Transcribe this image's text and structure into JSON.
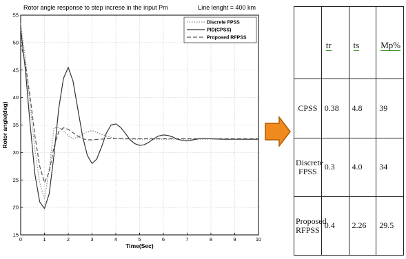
{
  "chart_data": {
    "type": "line",
    "title": "Rotor angle response to step increse in the input Pm",
    "annotation": "Line lenght = 400 km",
    "xlabel": "Time(Sec)",
    "ylabel": "Rotor angle(deg)",
    "xlim": [
      0,
      10
    ],
    "ylim": [
      15,
      55
    ],
    "x_ticks": [
      0,
      1,
      2,
      3,
      4,
      5,
      6,
      7,
      8,
      9,
      10
    ],
    "y_ticks": [
      15,
      20,
      25,
      30,
      35,
      40,
      45,
      50,
      55
    ],
    "x_tick_labels": [
      "0",
      "1",
      "2",
      "3",
      "4",
      "5",
      "6",
      "7",
      "8",
      "9",
      "10"
    ],
    "y_tick_labels": [
      "15",
      "20",
      "25",
      "30",
      "35",
      "40",
      "45",
      "50",
      "55"
    ],
    "grid": true,
    "legend_position": "top-right",
    "series": [
      {
        "name": "Discrete FPSS",
        "style": "dotted",
        "color": "#8a8a8a",
        "x": [
          0,
          0.2,
          0.4,
          0.6,
          0.8,
          1.0,
          1.2,
          1.4,
          1.6,
          1.8,
          2.0,
          2.2,
          2.4,
          2.6,
          2.8,
          3.0,
          3.3,
          3.6,
          4.0,
          4.5,
          5.0,
          6.0,
          7.0,
          8.0,
          9.0,
          10.0
        ],
        "y": [
          53.5,
          47.0,
          38.5,
          30.5,
          24.5,
          21.5,
          27.0,
          34.5,
          34.5,
          34.0,
          33.0,
          32.5,
          32.8,
          33.3,
          33.8,
          34.0,
          33.5,
          33.0,
          32.5,
          32.4,
          32.4,
          32.4,
          32.4,
          32.4,
          32.4,
          32.4
        ]
      },
      {
        "name": "PID(CPSS)",
        "style": "solid",
        "color": "#333333",
        "x": [
          0,
          0.2,
          0.4,
          0.6,
          0.8,
          1.0,
          1.2,
          1.4,
          1.6,
          1.8,
          2.0,
          2.2,
          2.4,
          2.6,
          2.8,
          3.0,
          3.2,
          3.4,
          3.6,
          3.8,
          4.0,
          4.2,
          4.4,
          4.6,
          4.8,
          5.0,
          5.2,
          5.4,
          5.6,
          5.8,
          6.0,
          6.2,
          6.4,
          6.6,
          6.8,
          7.0,
          7.5,
          8.0,
          8.5,
          9.0,
          10.0
        ],
        "y": [
          52.5,
          45.0,
          35.0,
          26.0,
          21.0,
          19.8,
          22.5,
          29.5,
          38.0,
          43.5,
          45.5,
          43.0,
          38.0,
          33.0,
          29.5,
          28.0,
          28.8,
          31.0,
          33.5,
          35.0,
          35.2,
          34.6,
          33.5,
          32.3,
          31.6,
          31.3,
          31.4,
          31.9,
          32.5,
          33.0,
          33.2,
          33.1,
          32.8,
          32.4,
          32.2,
          32.1,
          32.5,
          32.5,
          32.4,
          32.4,
          32.4
        ]
      },
      {
        "name": "Proposed RFPSS",
        "style": "dashed",
        "color": "#555555",
        "x": [
          0,
          0.2,
          0.4,
          0.6,
          0.8,
          1.0,
          1.2,
          1.4,
          1.6,
          1.8,
          2.0,
          2.2,
          2.4,
          2.6,
          2.8,
          3.0,
          3.3,
          3.6,
          4.0,
          5.0,
          6.0,
          7.0,
          8.0,
          9.0,
          10.0
        ],
        "y": [
          50.0,
          46.0,
          40.0,
          33.0,
          27.5,
          24.5,
          26.5,
          31.0,
          33.8,
          34.5,
          34.2,
          33.6,
          33.0,
          32.5,
          32.3,
          32.3,
          32.4,
          32.5,
          32.5,
          32.5,
          32.5,
          32.5,
          32.5,
          32.5,
          32.5
        ]
      }
    ]
  },
  "arrow": {
    "icon": "right-arrow-icon",
    "color": "#f08a1c",
    "border": "#b05a00"
  },
  "table": {
    "headers": [
      "",
      "tr",
      "ts",
      "Mp%"
    ],
    "header_underline_color": "#3a8a2a",
    "rows": [
      {
        "name": "CPSS",
        "tr": "0.38",
        "ts": "4.8",
        "mp": "39"
      },
      {
        "name": "Discrete FPSS",
        "tr": "0.3",
        "ts": "4.0",
        "mp": "34"
      },
      {
        "name": "Proposed RFPSS",
        "tr": "0.4",
        "ts": "2.26",
        "mp": "29.5"
      }
    ]
  }
}
